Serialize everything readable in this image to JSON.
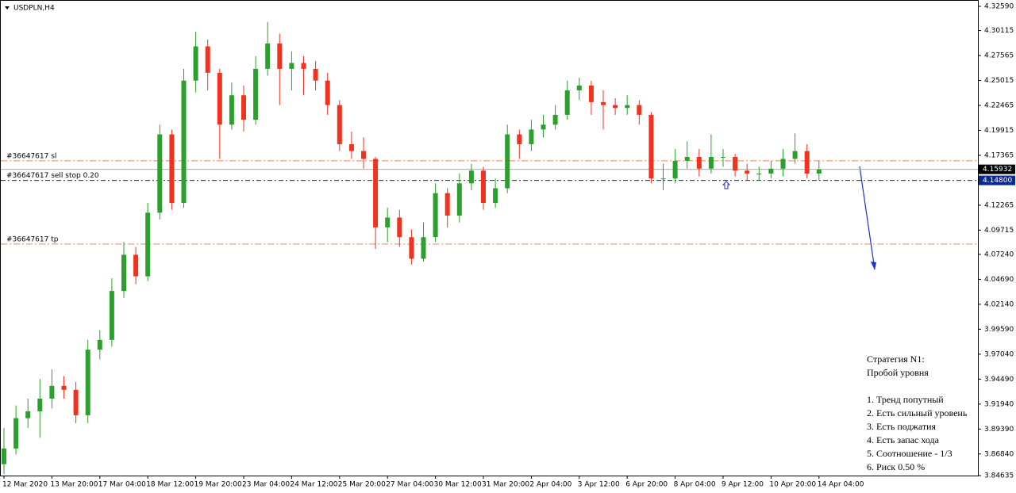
{
  "chart_data": {
    "type": "candlestick",
    "title": "USDPLN,H4",
    "categories": [
      "12 Mar 2020",
      null,
      null,
      null,
      "13 Mar 20:00",
      null,
      null,
      null,
      "17 Mar 04:00",
      null,
      null,
      null,
      "18 Mar 12:00",
      null,
      null,
      null,
      "19 Mar 20:00",
      null,
      null,
      null,
      "23 Mar 04:00",
      null,
      null,
      null,
      "24 Mar 12:00",
      null,
      null,
      null,
      "25 Mar 20:00",
      null,
      null,
      null,
      "27 Mar 04:00",
      null,
      null,
      null,
      "30 Mar 12:00",
      null,
      null,
      null,
      "31 Mar 20:00",
      null,
      null,
      null,
      "2 Apr 04:00",
      null,
      null,
      null,
      "3 Apr 12:00",
      null,
      null,
      null,
      "6 Apr 20:00",
      null,
      null,
      null,
      "8 Apr 04:00",
      null,
      null,
      null,
      "9 Apr 12:00",
      null,
      null,
      null,
      "10 Apr 20:00",
      null,
      null,
      null,
      "14 Apr 04:00"
    ],
    "open": [
      3.858,
      3.874,
      3.905,
      3.912,
      3.925,
      3.938,
      3.934,
      3.908,
      3.975,
      3.985,
      4.035,
      4.072,
      4.05,
      4.115,
      4.195,
      4.125,
      4.25,
      4.285,
      4.258,
      4.205,
      4.235,
      4.21,
      4.262,
      4.288,
      4.262,
      4.268,
      4.262,
      4.25,
      4.225,
      4.185,
      4.178,
      4.17,
      4.1,
      4.11,
      4.09,
      4.068,
      4.09,
      4.135,
      4.112,
      4.145,
      4.158,
      4.125,
      4.14,
      4.195,
      4.185,
      4.2,
      4.205,
      4.215,
      4.24,
      4.245,
      4.228,
      4.225,
      4.222,
      4.225,
      4.215,
      4.15,
      4.15,
      4.168,
      4.172,
      4.16,
      4.172,
      4.172,
      4.158,
      4.155,
      4.155,
      4.16,
      4.17,
      4.178,
      4.155
    ],
    "high": [
      3.895,
      3.918,
      3.925,
      3.945,
      3.955,
      3.948,
      3.942,
      3.985,
      3.995,
      4.048,
      4.085,
      4.08,
      4.125,
      4.205,
      4.2,
      4.262,
      4.3,
      4.292,
      4.262,
      4.248,
      4.245,
      4.275,
      4.31,
      4.298,
      4.28,
      4.275,
      4.27,
      4.258,
      4.23,
      4.198,
      4.192,
      4.172,
      4.12,
      4.118,
      4.098,
      4.105,
      4.145,
      4.14,
      4.155,
      4.165,
      4.162,
      4.15,
      4.205,
      4.2,
      4.21,
      4.215,
      4.225,
      4.25,
      4.253,
      4.25,
      4.24,
      4.232,
      4.235,
      4.23,
      4.218,
      4.165,
      4.18,
      4.188,
      4.18,
      4.195,
      4.18,
      4.175,
      4.165,
      4.162,
      4.168,
      4.18,
      4.196,
      4.185,
      4.168
    ],
    "low": [
      3.848,
      3.868,
      3.895,
      3.885,
      3.915,
      3.925,
      3.9,
      3.9,
      3.965,
      3.978,
      4.028,
      4.042,
      4.045,
      4.108,
      4.118,
      4.12,
      4.238,
      4.24,
      4.17,
      4.2,
      4.198,
      4.205,
      4.255,
      4.225,
      4.24,
      4.235,
      4.24,
      4.215,
      4.178,
      4.17,
      4.16,
      4.078,
      4.085,
      4.08,
      4.062,
      4.065,
      4.085,
      4.1,
      4.105,
      4.138,
      4.118,
      4.12,
      4.135,
      4.17,
      4.178,
      4.192,
      4.2,
      4.21,
      4.23,
      4.215,
      4.2,
      4.215,
      4.215,
      4.205,
      4.145,
      4.138,
      4.145,
      4.16,
      4.152,
      4.155,
      4.162,
      4.152,
      4.148,
      4.148,
      4.15,
      4.152,
      4.165,
      4.15,
      4.148
    ],
    "close": [
      3.874,
      3.905,
      3.912,
      3.925,
      3.938,
      3.934,
      3.908,
      3.975,
      3.985,
      4.035,
      4.072,
      4.05,
      4.115,
      4.195,
      4.125,
      4.25,
      4.285,
      4.258,
      4.205,
      4.235,
      4.21,
      4.262,
      4.288,
      4.262,
      4.268,
      4.262,
      4.25,
      4.225,
      4.185,
      4.178,
      4.17,
      4.1,
      4.11,
      4.09,
      4.068,
      4.09,
      4.135,
      4.112,
      4.145,
      4.158,
      4.125,
      4.14,
      4.195,
      4.185,
      4.2,
      4.205,
      4.215,
      4.24,
      4.245,
      4.228,
      4.225,
      4.222,
      4.225,
      4.215,
      4.15,
      4.15,
      4.168,
      4.172,
      4.16,
      4.172,
      4.172,
      4.158,
      4.155,
      4.155,
      4.16,
      4.17,
      4.178,
      4.155,
      4.159
    ],
    "up_color": "#2ca02c",
    "down_color": "#f0321e",
    "ylim": [
      3.84635,
      4.3259
    ],
    "yticks": [
      {
        "value": 4.3259,
        "label": "4.32590"
      },
      4.30115,
      4.27565,
      4.25015,
      4.22465,
      4.19915,
      4.17365,
      4.14815,
      4.12265,
      4.09715,
      {
        "value": 4.0724,
        "label": "4.07240"
      },
      {
        "value": 4.0469,
        "label": "4.04690"
      },
      {
        "value": 4.0214,
        "label": "4.02140"
      },
      {
        "value": 3.9959,
        "label": "3.99590"
      },
      {
        "value": 3.9704,
        "label": "3.97040"
      },
      {
        "value": 3.9449,
        "label": "3.94490"
      },
      {
        "value": 3.9194,
        "label": "3.91940"
      },
      {
        "value": 3.8939,
        "label": "3.89390"
      },
      {
        "value": 3.8684,
        "label": "3.86840"
      },
      3.84635
    ],
    "levels": [
      {
        "name": "#36647617 sl",
        "value": 4.168,
        "color": "#ff7f50"
      },
      {
        "name": "#36647617 sell stop 0.20",
        "value": {
          "value": 4.148,
          "label": "4.14800"
        },
        "color": "#0a2a8c"
      },
      {
        "name": "#36647617 tp",
        "value": 4.083,
        "color": "#ff7f50"
      }
    ],
    "current_price": 4.15932,
    "note_lines": [
      "Стратегия N1:",
      "Пробой уровня",
      "1. Тренд попутный",
      "2. Есть сильный уровень",
      "3. Есть поджатия",
      "4. Есть запас хода",
      "5. Соотношение - 1/3",
      "6. Риск 0.50 %"
    ]
  }
}
